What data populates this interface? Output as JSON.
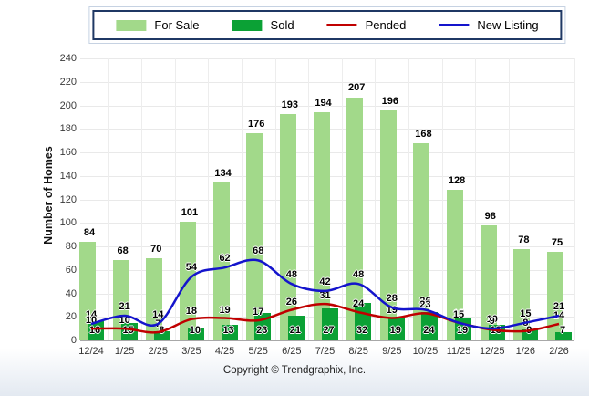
{
  "legend": {
    "items": [
      {
        "label": "For Sale",
        "type": "bar",
        "color": "#a2d98a"
      },
      {
        "label": "Sold",
        "type": "bar",
        "color": "#0ba135"
      },
      {
        "label": "Pended",
        "type": "line",
        "color": "#c00000"
      },
      {
        "label": "New Listing",
        "type": "line",
        "color": "#1414cc"
      }
    ]
  },
  "ylabel": "Number of Homes",
  "copyright": "Copyright © Trendgraphix, Inc.",
  "chart_data": {
    "type": "bar",
    "title": "",
    "xlabel": "",
    "ylabel": "Number of Homes",
    "ylim": [
      0,
      240
    ],
    "ytick_step": 20,
    "grid": true,
    "legend_position": "top",
    "categories": [
      "12/24",
      "1/25",
      "2/25",
      "3/25",
      "4/25",
      "5/25",
      "6/25",
      "7/25",
      "8/25",
      "9/25",
      "10/25",
      "11/25",
      "12/25",
      "1/26",
      "2/26"
    ],
    "series": [
      {
        "name": "For Sale",
        "type": "bar",
        "color": "#a2d98a",
        "values": [
          84,
          68,
          70,
          101,
          134,
          176,
          193,
          194,
          207,
          196,
          168,
          128,
          98,
          78,
          75
        ]
      },
      {
        "name": "Sold",
        "type": "bar",
        "color": "#0ba135",
        "values": [
          16,
          15,
          8,
          10,
          13,
          23,
          21,
          27,
          32,
          19,
          24,
          19,
          13,
          9,
          7
        ]
      },
      {
        "name": "Pended",
        "type": "line",
        "color": "#c00000",
        "values": [
          10,
          10,
          7,
          18,
          19,
          17,
          26,
          31,
          24,
          19,
          23,
          15,
          9,
          8,
          14
        ]
      },
      {
        "name": "New Listing",
        "type": "line",
        "color": "#1414cc",
        "values": [
          14,
          21,
          14,
          54,
          62,
          68,
          48,
          42,
          48,
          28,
          26,
          15,
          10,
          15,
          21
        ]
      }
    ]
  }
}
